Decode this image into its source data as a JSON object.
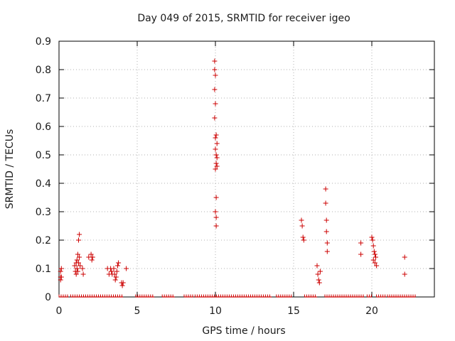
{
  "chart_data": {
    "type": "scatter",
    "title": "Day 049 of 2015, SRMTID for receiver igeo",
    "xlabel": "GPS time / hours",
    "ylabel": "SRMTID / TECUs",
    "xlim": [
      0,
      24
    ],
    "ylim": [
      0,
      0.9
    ],
    "xticks": [
      0,
      5,
      10,
      15,
      20
    ],
    "yticks": [
      0,
      0.1,
      0.2,
      0.3,
      0.4,
      0.5,
      0.6,
      0.7,
      0.8,
      0.9
    ],
    "xtick_labels": [
      "0",
      "5",
      "10",
      "15",
      "20"
    ],
    "ytick_labels": [
      "0",
      "0.1",
      "0.2",
      "0.3",
      "0.4",
      "0.5",
      "0.6",
      "0.7",
      "0.8",
      "0.9"
    ],
    "grid": true,
    "marker": "+",
    "color": "#cc0000",
    "series": [
      {
        "name": "SRMTID",
        "points": [
          [
            0.1,
            0.09
          ],
          [
            0.1,
            0.07
          ],
          [
            0.1,
            0.06
          ],
          [
            0.15,
            0.07
          ],
          [
            0.15,
            0.1
          ],
          [
            1.0,
            0.11
          ],
          [
            1.05,
            0.09
          ],
          [
            1.1,
            0.12
          ],
          [
            1.1,
            0.08
          ],
          [
            1.15,
            0.13
          ],
          [
            1.15,
            0.1
          ],
          [
            1.2,
            0.15
          ],
          [
            1.2,
            0.09
          ],
          [
            1.25,
            0.2
          ],
          [
            1.25,
            0.12
          ],
          [
            1.3,
            0.22
          ],
          [
            1.3,
            0.14
          ],
          [
            1.35,
            0.11
          ],
          [
            1.5,
            0.1
          ],
          [
            1.55,
            0.08
          ],
          [
            1.9,
            0.14
          ],
          [
            2.05,
            0.15
          ],
          [
            2.1,
            0.13
          ],
          [
            2.15,
            0.14
          ],
          [
            3.1,
            0.1
          ],
          [
            3.2,
            0.08
          ],
          [
            3.3,
            0.1
          ],
          [
            3.35,
            0.09
          ],
          [
            3.4,
            0.08
          ],
          [
            3.5,
            0.1
          ],
          [
            3.55,
            0.08
          ],
          [
            3.6,
            0.06
          ],
          [
            3.65,
            0.07
          ],
          [
            3.7,
            0.09
          ],
          [
            3.75,
            0.11
          ],
          [
            3.8,
            0.12
          ],
          [
            4.0,
            0.05
          ],
          [
            4.05,
            0.04
          ],
          [
            4.1,
            0.05
          ],
          [
            4.3,
            0.1
          ],
          [
            9.95,
            0.83
          ],
          [
            9.95,
            0.8
          ],
          [
            10.0,
            0.78
          ],
          [
            9.95,
            0.73
          ],
          [
            10.0,
            0.68
          ],
          [
            9.95,
            0.63
          ],
          [
            10.0,
            0.56
          ],
          [
            10.05,
            0.57
          ],
          [
            10.1,
            0.54
          ],
          [
            10.0,
            0.52
          ],
          [
            10.05,
            0.5
          ],
          [
            10.1,
            0.49
          ],
          [
            10.05,
            0.47
          ],
          [
            10.1,
            0.46
          ],
          [
            10.0,
            0.45
          ],
          [
            10.05,
            0.35
          ],
          [
            10.0,
            0.3
          ],
          [
            10.05,
            0.28
          ],
          [
            10.05,
            0.25
          ],
          [
            15.5,
            0.27
          ],
          [
            15.55,
            0.25
          ],
          [
            15.6,
            0.21
          ],
          [
            15.65,
            0.2
          ],
          [
            16.5,
            0.11
          ],
          [
            16.55,
            0.08
          ],
          [
            16.6,
            0.06
          ],
          [
            16.65,
            0.05
          ],
          [
            16.7,
            0.09
          ],
          [
            17.05,
            0.38
          ],
          [
            17.05,
            0.33
          ],
          [
            17.1,
            0.27
          ],
          [
            17.1,
            0.23
          ],
          [
            17.15,
            0.19
          ],
          [
            17.15,
            0.16
          ],
          [
            19.3,
            0.19
          ],
          [
            19.3,
            0.15
          ],
          [
            20.0,
            0.21
          ],
          [
            20.05,
            0.2
          ],
          [
            20.1,
            0.18
          ],
          [
            20.15,
            0.16
          ],
          [
            20.2,
            0.15
          ],
          [
            20.25,
            0.14
          ],
          [
            20.1,
            0.13
          ],
          [
            20.2,
            0.12
          ],
          [
            20.3,
            0.11
          ],
          [
            22.1,
            0.14
          ],
          [
            22.1,
            0.08
          ]
        ]
      }
    ],
    "zero_line_segments": [
      [
        0.0,
        0.6
      ],
      [
        0.75,
        4.1
      ],
      [
        4.9,
        6.1
      ],
      [
        6.6,
        7.4
      ],
      [
        8.0,
        8.6
      ],
      [
        8.7,
        13.6
      ],
      [
        13.9,
        14.9
      ],
      [
        15.7,
        16.5
      ],
      [
        17.0,
        19.5
      ],
      [
        19.7,
        20.0
      ],
      [
        20.3,
        20.9
      ],
      [
        21.0,
        22.8
      ]
    ]
  }
}
